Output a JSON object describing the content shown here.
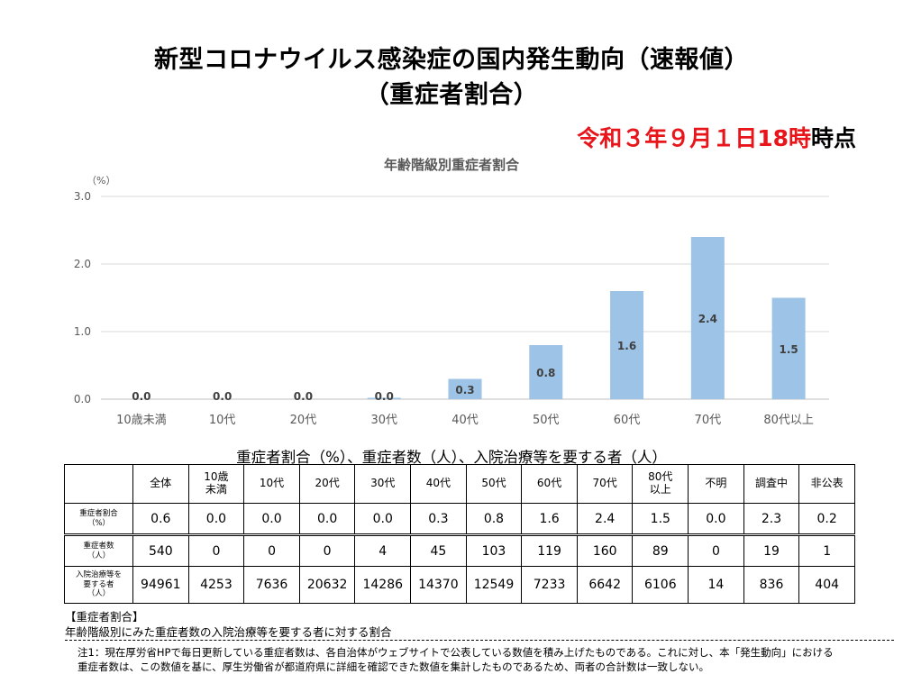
{
  "header": {
    "title_line1": "新型コロナウイルス感染症の国内発生動向（速報値）",
    "title_line2": "（重症者割合）",
    "date_red": "令和３年９月１日18時",
    "date_suffix": "時点"
  },
  "chart_data": {
    "type": "bar",
    "title": "年齢階級別重症者割合",
    "ylabel": "（%）",
    "ylim": [
      0,
      3.0
    ],
    "yticks": [
      "0.0",
      "1.0",
      "2.0",
      "3.0"
    ],
    "categories": [
      "10歳未満",
      "10代",
      "20代",
      "30代",
      "40代",
      "50代",
      "60代",
      "70代",
      "80代以上"
    ],
    "values": [
      0.0,
      0.0,
      0.0,
      0.02,
      0.3,
      0.8,
      1.6,
      2.4,
      1.5
    ],
    "data_labels": [
      "0.0",
      "0.0",
      "0.0",
      "0.0",
      "0.3",
      "0.8",
      "1.6",
      "2.4",
      "1.5"
    ],
    "bar_color": "#9dc3e6",
    "grid": true,
    "legend": "none"
  },
  "table": {
    "title": "重症者割合（%）、重症者数（人）、入院治療等を要する者（人）",
    "headers": [
      "全体",
      "10歳\n未満",
      "10代",
      "20代",
      "30代",
      "40代",
      "50代",
      "60代",
      "70代",
      "80代\n以上",
      "不明",
      "調査中",
      "非公表"
    ],
    "rows": [
      {
        "label": "重症者割合\n（%）",
        "values": [
          "0.6",
          "0.0",
          "0.0",
          "0.0",
          "0.0",
          "0.3",
          "0.8",
          "1.6",
          "2.4",
          "1.5",
          "0.0",
          "2.3",
          "0.2"
        ]
      },
      {
        "label": "重症者数\n（人）",
        "values": [
          "540",
          "0",
          "0",
          "0",
          "4",
          "45",
          "103",
          "119",
          "160",
          "89",
          "0",
          "19",
          "1"
        ]
      },
      {
        "label": "入院治療等を\n要する者\n（人）",
        "values": [
          "94961",
          "4253",
          "7636",
          "20632",
          "14286",
          "14370",
          "12549",
          "7233",
          "6642",
          "6106",
          "14",
          "836",
          "404"
        ]
      }
    ]
  },
  "notes": {
    "heading": "【重症者割合】",
    "definition": "年齢階級別にみた重症者数の入院治療等を要する者に対する割合",
    "footnote_line1": "注1：現在厚労省HPで毎日更新している重症者数は、各自治体がウェブサイトで公表している数値を積み上げたものである。これに対し、本「発生動向」における",
    "footnote_line2": "重症者数は、この数値を基に、厚生労働省が都道府県に詳細を確認できた数値を集計したものであるため、両者の合計数は一致しない。"
  }
}
